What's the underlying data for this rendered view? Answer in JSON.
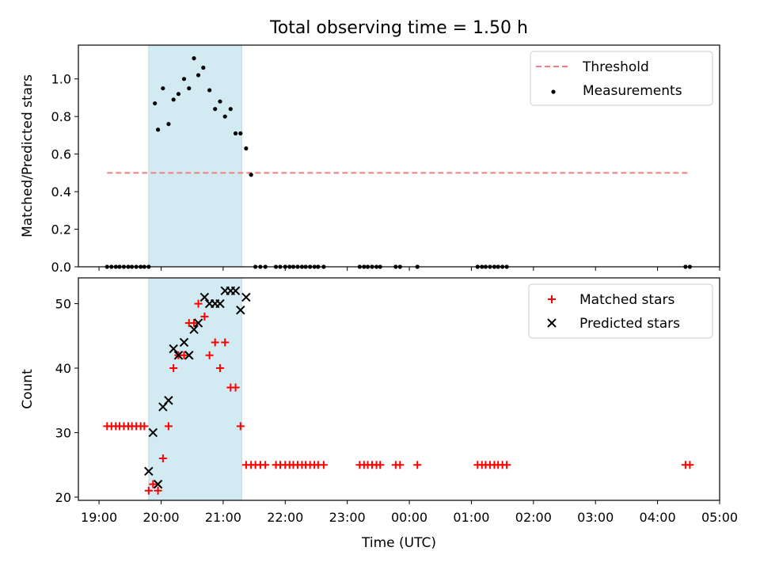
{
  "title": "Total observing time = 1.50 h",
  "xlabel": "Time (UTC)",
  "x_ticks": [
    "19:00",
    "20:00",
    "21:00",
    "22:00",
    "23:00",
    "00:00",
    "01:00",
    "02:00",
    "03:00",
    "04:00",
    "05:00"
  ],
  "x_tick_hours": [
    19,
    20,
    21,
    22,
    23,
    24,
    25,
    26,
    27,
    28,
    29
  ],
  "xlim": [
    18.667,
    29.0
  ],
  "observing_window": [
    19.8,
    21.3
  ],
  "window_color": "#add8e6",
  "chart_data": [
    {
      "type": "scatter",
      "ylabel": "Matched/Predicted stars",
      "ylim": [
        0,
        1.18
      ],
      "y_ticks": [
        "0.0",
        "0.2",
        "0.4",
        "0.6",
        "0.8",
        "1.0"
      ],
      "y_tick_values": [
        0,
        0.2,
        0.4,
        0.6,
        0.8,
        1.0
      ],
      "legend": {
        "placement": "top-right",
        "entries": [
          "Threshold",
          "Measurements"
        ]
      },
      "threshold": {
        "name": "Threshold",
        "value": 0.5,
        "x_range": [
          19.13,
          28.5
        ],
        "color": "#f08080"
      },
      "series": [
        {
          "name": "Measurements",
          "color": "#000000",
          "x": [
            19.13,
            19.2,
            19.27,
            19.33,
            19.4,
            19.47,
            19.53,
            19.6,
            19.67,
            19.73,
            19.8,
            19.9,
            19.95,
            20.03,
            20.12,
            20.2,
            20.28,
            20.37,
            20.45,
            20.53,
            20.6,
            20.68,
            20.78,
            20.87,
            20.95,
            21.03,
            21.12,
            21.2,
            21.28,
            21.37,
            21.45,
            21.52,
            21.6,
            21.68,
            21.85,
            21.92,
            22.0,
            22.07,
            22.13,
            22.2,
            22.27,
            22.33,
            22.4,
            22.47,
            22.53,
            22.62,
            23.2,
            23.27,
            23.33,
            23.4,
            23.47,
            23.53,
            23.78,
            23.85,
            24.13,
            25.1,
            25.17,
            25.23,
            25.3,
            25.37,
            25.43,
            25.5,
            25.57,
            28.45,
            28.52
          ],
          "y": [
            0,
            0,
            0,
            0,
            0,
            0,
            0,
            0,
            0,
            0,
            0,
            0.87,
            0.73,
            0.95,
            0.76,
            0.89,
            0.92,
            1.0,
            0.95,
            1.11,
            1.02,
            1.06,
            0.94,
            0.84,
            0.88,
            0.8,
            0.84,
            0.71,
            0.71,
            0.63,
            0.49,
            0,
            0,
            0,
            0,
            0,
            0,
            0,
            0,
            0,
            0,
            0,
            0,
            0,
            0,
            0,
            0,
            0,
            0,
            0,
            0,
            0,
            0,
            0,
            0,
            0,
            0,
            0,
            0,
            0,
            0,
            0,
            0,
            0,
            0
          ]
        }
      ]
    },
    {
      "type": "scatter",
      "ylabel": "Count",
      "ylim": [
        19.5,
        54
      ],
      "y_ticks": [
        "20",
        "30",
        "40",
        "50"
      ],
      "y_tick_values": [
        20,
        30,
        40,
        50
      ],
      "legend": {
        "placement": "top-right",
        "entries": [
          "Matched stars",
          "Predicted stars"
        ]
      },
      "series": [
        {
          "name": "Matched stars",
          "marker": "plus",
          "color": "#ff0000",
          "x": [
            19.13,
            19.2,
            19.27,
            19.33,
            19.4,
            19.47,
            19.53,
            19.6,
            19.67,
            19.73,
            19.8,
            19.87,
            19.95,
            20.03,
            20.12,
            20.2,
            20.28,
            20.37,
            20.45,
            20.53,
            20.6,
            20.7,
            20.78,
            20.87,
            20.95,
            21.03,
            21.12,
            21.2,
            21.28,
            21.37,
            21.45,
            21.52,
            21.6,
            21.68,
            21.85,
            21.92,
            22.0,
            22.07,
            22.13,
            22.2,
            22.27,
            22.33,
            22.4,
            22.47,
            22.53,
            22.62,
            23.2,
            23.27,
            23.33,
            23.4,
            23.47,
            23.53,
            23.78,
            23.85,
            24.13,
            25.1,
            25.17,
            25.23,
            25.3,
            25.37,
            25.43,
            25.5,
            25.57,
            28.45,
            28.52
          ],
          "y": [
            31,
            31,
            31,
            31,
            31,
            31,
            31,
            31,
            31,
            31,
            21,
            22,
            21,
            26,
            31,
            40,
            42,
            42,
            47,
            47,
            50,
            48,
            42,
            44,
            40,
            44,
            37,
            37,
            31,
            25,
            25,
            25,
            25,
            25,
            25,
            25,
            25,
            25,
            25,
            25,
            25,
            25,
            25,
            25,
            25,
            25,
            25,
            25,
            25,
            25,
            25,
            25,
            25,
            25,
            25,
            25,
            25,
            25,
            25,
            25,
            25,
            25,
            25,
            25,
            25
          ]
        },
        {
          "name": "Predicted stars",
          "marker": "x",
          "color": "#000000",
          "x": [
            19.8,
            19.87,
            19.95,
            20.03,
            20.12,
            20.2,
            20.28,
            20.37,
            20.45,
            20.53,
            20.6,
            20.7,
            20.78,
            20.87,
            20.95,
            21.03,
            21.12,
            21.2,
            21.28,
            21.37
          ],
          "y": [
            24,
            30,
            22,
            34,
            35,
            43,
            42,
            44,
            42,
            46,
            47,
            51,
            50,
            50,
            50,
            52,
            52,
            52,
            49,
            51
          ]
        }
      ]
    }
  ]
}
